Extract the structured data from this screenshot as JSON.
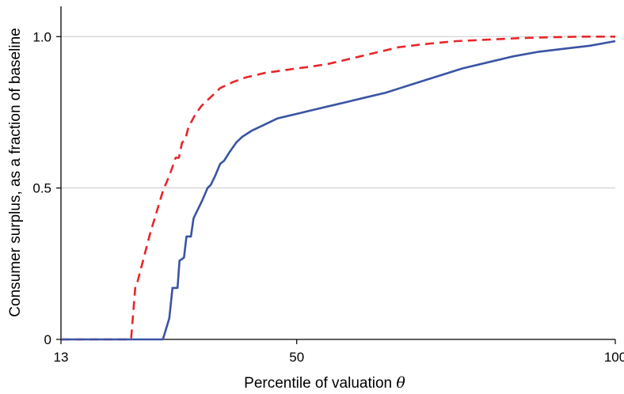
{
  "chart_data": {
    "type": "line",
    "xlabel": "Percentile of valuation",
    "xlabel_symbol": "θ",
    "ylabel": "Consumer surplus, as a fraction of baseline",
    "xlim": [
      13,
      100
    ],
    "ylim": [
      0,
      1.1
    ],
    "xticks": [
      13,
      50,
      100
    ],
    "xtick_labels": [
      "13",
      "50",
      "100"
    ],
    "yticks": [
      0,
      0.5,
      1.0
    ],
    "ytick_labels": [
      "0",
      "0.5",
      "1.0"
    ],
    "grid": "horizontal at y ticks",
    "legend": "none",
    "series": [
      {
        "style": "dashed",
        "color": "#e8262a",
        "points": [
          [
            13,
            0
          ],
          [
            24.0,
            0
          ],
          [
            24.7,
            0.18
          ],
          [
            25.0,
            0.19
          ],
          [
            26,
            0.27
          ],
          [
            27,
            0.35
          ],
          [
            28,
            0.42
          ],
          [
            29,
            0.49
          ],
          [
            30,
            0.54
          ],
          [
            31,
            0.6
          ],
          [
            31.5,
            0.6
          ],
          [
            32,
            0.65
          ],
          [
            32.5,
            0.66
          ],
          [
            33,
            0.7
          ],
          [
            34,
            0.74
          ],
          [
            35,
            0.77
          ],
          [
            36,
            0.79
          ],
          [
            38,
            0.83
          ],
          [
            40,
            0.85
          ],
          [
            42,
            0.865
          ],
          [
            45,
            0.88
          ],
          [
            50,
            0.895
          ],
          [
            52,
            0.9
          ],
          [
            55,
            0.91
          ],
          [
            60,
            0.935
          ],
          [
            63,
            0.95
          ],
          [
            66,
            0.965
          ],
          [
            70,
            0.975
          ],
          [
            75,
            0.985
          ],
          [
            80,
            0.99
          ],
          [
            85,
            0.995
          ],
          [
            90,
            0.998
          ],
          [
            95,
            1.0
          ],
          [
            98,
            1.0
          ],
          [
            100,
            1.0
          ]
        ]
      },
      {
        "style": "solid",
        "color": "#3a54a4",
        "points": [
          [
            13,
            0
          ],
          [
            29.0,
            0
          ],
          [
            30,
            0.07
          ],
          [
            30.5,
            0.17
          ],
          [
            31.3,
            0.17
          ],
          [
            31.6,
            0.26
          ],
          [
            32.3,
            0.27
          ],
          [
            32.7,
            0.34
          ],
          [
            33.4,
            0.34
          ],
          [
            33.8,
            0.4
          ],
          [
            34.5,
            0.43
          ],
          [
            35.2,
            0.46
          ],
          [
            36,
            0.5
          ],
          [
            36.5,
            0.51
          ],
          [
            37.2,
            0.54
          ],
          [
            38,
            0.58
          ],
          [
            38.6,
            0.59
          ],
          [
            39.5,
            0.62
          ],
          [
            40.5,
            0.65
          ],
          [
            41.5,
            0.67
          ],
          [
            43,
            0.69
          ],
          [
            45,
            0.71
          ],
          [
            47,
            0.73
          ],
          [
            49,
            0.74
          ],
          [
            51,
            0.75
          ],
          [
            53,
            0.76
          ],
          [
            55,
            0.77
          ],
          [
            58,
            0.785
          ],
          [
            61,
            0.8
          ],
          [
            64,
            0.815
          ],
          [
            67,
            0.835
          ],
          [
            70,
            0.855
          ],
          [
            73,
            0.875
          ],
          [
            76,
            0.895
          ],
          [
            80,
            0.915
          ],
          [
            84,
            0.935
          ],
          [
            88,
            0.95
          ],
          [
            92,
            0.96
          ],
          [
            96,
            0.97
          ],
          [
            100,
            0.985
          ]
        ]
      }
    ]
  }
}
